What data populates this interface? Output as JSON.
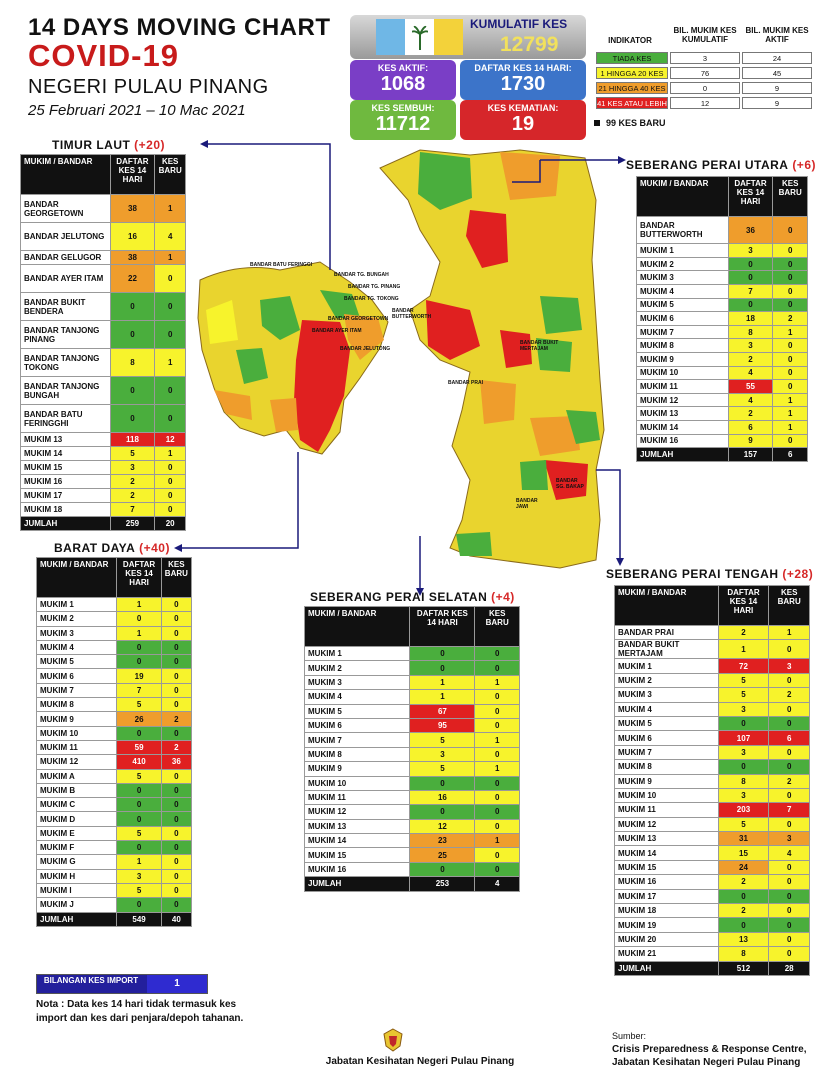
{
  "header": {
    "line1": "14  DAYS MOVING CHART",
    "line2": "COVID-19",
    "line3": "NEGERI PULAU PINANG",
    "line4": "25 Februari 2021 – 10 Mac 2021"
  },
  "stats": {
    "kumulatif": {
      "label": "KUMULATIF KES",
      "value": "12799"
    },
    "aktif": {
      "label": "KES AKTIF:",
      "value": "1068",
      "color": "#7a3ec6"
    },
    "daftar14": {
      "label": "DAFTAR KES 14 HARI:",
      "value": "1730",
      "color": "#3c74c9"
    },
    "sembuh": {
      "label": "KES SEMBUH:",
      "value": "11712",
      "color": "#6fb93f"
    },
    "kematian": {
      "label": "KES KEMATIAN:",
      "value": "19",
      "color": "#d6262a"
    }
  },
  "indicator": {
    "headers": [
      "INDIKATOR",
      "BIL. MUKIM KES KUMULATIF",
      "BIL. MUKIM KES AKTIF"
    ],
    "rows": [
      {
        "label": "TIADA KES",
        "cum": "3",
        "active": "24",
        "color": "#4aae3d"
      },
      {
        "label": "1 HINGGA 20 KES",
        "cum": "76",
        "active": "45",
        "color": "#f7f32c"
      },
      {
        "label": "21 HINGGA 40 KES",
        "cum": "0",
        "active": "9",
        "color": "#ef9d2c"
      },
      {
        "label": "41 KES ATAU LEBIH",
        "cum": "12",
        "active": "9",
        "color": "#e02020"
      }
    ],
    "new_cases_note": "99 KES BARU"
  },
  "table_headers": {
    "mukim": "MUKIM / BANDAR",
    "daftar": "DAFTAR KES 14 HARI",
    "baru": "KES BARU"
  },
  "timur_laut": {
    "title": "TIMUR LAUT",
    "delta": "(+20)",
    "rows": [
      [
        "BANDAR GEORGETOWN",
        "38",
        "1",
        "o",
        "o"
      ],
      [
        "BANDAR JELUTONG",
        "16",
        "4",
        "y",
        "y"
      ],
      [
        "BANDAR GELUGOR",
        "38",
        "1",
        "o",
        "o"
      ],
      [
        "BANDAR AYER ITAM",
        "22",
        "0",
        "o",
        "y"
      ],
      [
        "BANDAR BUKIT BENDERA",
        "0",
        "0",
        "g",
        "g"
      ],
      [
        "BANDAR TANJONG PINANG",
        "0",
        "0",
        "g",
        "g"
      ],
      [
        "BANDAR TANJONG TOKONG",
        "8",
        "1",
        "y",
        "y"
      ],
      [
        "BANDAR TANJONG BUNGAH",
        "0",
        "0",
        "g",
        "g"
      ],
      [
        "BANDAR BATU FERINGGHI",
        "0",
        "0",
        "g",
        "g"
      ],
      [
        "MUKIM 13",
        "118",
        "12",
        "r",
        "r"
      ],
      [
        "MUKIM 14",
        "5",
        "1",
        "y",
        "y"
      ],
      [
        "MUKIM 15",
        "3",
        "0",
        "y",
        "y"
      ],
      [
        "MUKIM 16",
        "2",
        "0",
        "y",
        "y"
      ],
      [
        "MUKIM 17",
        "2",
        "0",
        "y",
        "y"
      ],
      [
        "MUKIM 18",
        "7",
        "0",
        "y",
        "y"
      ]
    ],
    "total": [
      "JUMLAH",
      "259",
      "20"
    ]
  },
  "barat_daya": {
    "title": "BARAT DAYA",
    "delta": "(+40)",
    "rows": [
      [
        "MUKIM 1",
        "1",
        "0",
        "y",
        "y"
      ],
      [
        "MUKIM 2",
        "0",
        "0",
        "y",
        "y"
      ],
      [
        "MUKIM 3",
        "1",
        "0",
        "y",
        "y"
      ],
      [
        "MUKIM 4",
        "0",
        "0",
        "g",
        "g"
      ],
      [
        "MUKIM 5",
        "0",
        "0",
        "g",
        "g"
      ],
      [
        "MUKIM 6",
        "19",
        "0",
        "y",
        "y"
      ],
      [
        "MUKIM 7",
        "7",
        "0",
        "y",
        "y"
      ],
      [
        "MUKIM 8",
        "5",
        "0",
        "y",
        "y"
      ],
      [
        "MUKIM 9",
        "26",
        "2",
        "o",
        "o"
      ],
      [
        "MUKIM 10",
        "0",
        "0",
        "g",
        "g"
      ],
      [
        "MUKIM 11",
        "59",
        "2",
        "r",
        "r"
      ],
      [
        "MUKIM 12",
        "410",
        "36",
        "r",
        "r"
      ],
      [
        "MUKIM A",
        "5",
        "0",
        "y",
        "y"
      ],
      [
        "MUKIM B",
        "0",
        "0",
        "g",
        "g"
      ],
      [
        "MUKIM C",
        "0",
        "0",
        "g",
        "g"
      ],
      [
        "MUKIM D",
        "0",
        "0",
        "g",
        "g"
      ],
      [
        "MUKIM E",
        "5",
        "0",
        "y",
        "y"
      ],
      [
        "MUKIM F",
        "0",
        "0",
        "g",
        "g"
      ],
      [
        "MUKIM G",
        "1",
        "0",
        "y",
        "y"
      ],
      [
        "MUKIM H",
        "3",
        "0",
        "y",
        "y"
      ],
      [
        "MUKIM I",
        "5",
        "0",
        "y",
        "y"
      ],
      [
        "MUKIM J",
        "0",
        "0",
        "g",
        "g"
      ]
    ],
    "total": [
      "JUMLAH",
      "549",
      "40"
    ]
  },
  "spu": {
    "title": "SEBERANG PERAI UTARA",
    "delta": "(+6)",
    "rows": [
      [
        "BANDAR BUTTERWORTH",
        "36",
        "0",
        "o",
        "o"
      ],
      [
        "MUKIM 1",
        "3",
        "0",
        "y",
        "y"
      ],
      [
        "MUKIM 2",
        "0",
        "0",
        "g",
        "g"
      ],
      [
        "MUKIM 3",
        "0",
        "0",
        "g",
        "g"
      ],
      [
        "MUKIM 4",
        "7",
        "0",
        "y",
        "y"
      ],
      [
        "MUKIM 5",
        "0",
        "0",
        "g",
        "g"
      ],
      [
        "MUKIM 6",
        "18",
        "2",
        "y",
        "y"
      ],
      [
        "MUKIM 7",
        "8",
        "1",
        "y",
        "y"
      ],
      [
        "MUKIM 8",
        "3",
        "0",
        "y",
        "y"
      ],
      [
        "MUKIM 9",
        "2",
        "0",
        "y",
        "y"
      ],
      [
        "MUKIM 10",
        "4",
        "0",
        "y",
        "y"
      ],
      [
        "MUKIM 11",
        "55",
        "0",
        "r",
        "y"
      ],
      [
        "MUKIM 12",
        "4",
        "1",
        "y",
        "y"
      ],
      [
        "MUKIM 13",
        "2",
        "1",
        "y",
        "y"
      ],
      [
        "MUKIM 14",
        "6",
        "1",
        "y",
        "y"
      ],
      [
        "MUKIM 16",
        "9",
        "0",
        "y",
        "y"
      ]
    ],
    "total": [
      "JUMLAH",
      "157",
      "6"
    ]
  },
  "sps": {
    "title": "SEBERANG PERAI SELATAN",
    "delta": "(+4)",
    "rows": [
      [
        "MUKIM 1",
        "0",
        "0",
        "g",
        "g"
      ],
      [
        "MUKIM 2",
        "0",
        "0",
        "g",
        "g"
      ],
      [
        "MUKIM 3",
        "1",
        "1",
        "y",
        "y"
      ],
      [
        "MUKIM 4",
        "1",
        "0",
        "y",
        "y"
      ],
      [
        "MUKIM 5",
        "67",
        "0",
        "r",
        "y"
      ],
      [
        "MUKIM 6",
        "95",
        "0",
        "r",
        "y"
      ],
      [
        "MUKIM 7",
        "5",
        "1",
        "y",
        "y"
      ],
      [
        "MUKIM 8",
        "3",
        "0",
        "y",
        "y"
      ],
      [
        "MUKIM 9",
        "5",
        "1",
        "y",
        "y"
      ],
      [
        "MUKIM 10",
        "0",
        "0",
        "g",
        "g"
      ],
      [
        "MUKIM 11",
        "16",
        "0",
        "y",
        "y"
      ],
      [
        "MUKIM 12",
        "0",
        "0",
        "g",
        "g"
      ],
      [
        "MUKIM 13",
        "12",
        "0",
        "y",
        "y"
      ],
      [
        "MUKIM 14",
        "23",
        "1",
        "o",
        "o"
      ],
      [
        "MUKIM 15",
        "25",
        "0",
        "o",
        "y"
      ],
      [
        "MUKIM 16",
        "0",
        "0",
        "g",
        "g"
      ]
    ],
    "total": [
      "JUMLAH",
      "253",
      "4"
    ]
  },
  "spt": {
    "title": "SEBERANG PERAI TENGAH",
    "delta": "(+28)",
    "rows": [
      [
        "BANDAR PRAI",
        "2",
        "1",
        "y",
        "y"
      ],
      [
        "BANDAR BUKIT MERTAJAM",
        "1",
        "0",
        "y",
        "y"
      ],
      [
        "MUKIM 1",
        "72",
        "3",
        "r",
        "r"
      ],
      [
        "MUKIM 2",
        "5",
        "0",
        "y",
        "y"
      ],
      [
        "MUKIM 3",
        "5",
        "2",
        "y",
        "y"
      ],
      [
        "MUKIM 4",
        "3",
        "0",
        "y",
        "y"
      ],
      [
        "MUKIM 5",
        "0",
        "0",
        "g",
        "g"
      ],
      [
        "MUKIM 6",
        "107",
        "6",
        "r",
        "r"
      ],
      [
        "MUKIM 7",
        "3",
        "0",
        "y",
        "y"
      ],
      [
        "MUKIM 8",
        "0",
        "0",
        "g",
        "g"
      ],
      [
        "MUKIM 9",
        "8",
        "2",
        "y",
        "y"
      ],
      [
        "MUKIM 10",
        "3",
        "0",
        "y",
        "y"
      ],
      [
        "MUKIM 11",
        "203",
        "7",
        "r",
        "r"
      ],
      [
        "MUKIM 12",
        "5",
        "0",
        "y",
        "y"
      ],
      [
        "MUKIM 13",
        "31",
        "3",
        "o",
        "o"
      ],
      [
        "MUKIM 14",
        "15",
        "4",
        "y",
        "y"
      ],
      [
        "MUKIM 15",
        "24",
        "0",
        "o",
        "y"
      ],
      [
        "MUKIM 16",
        "2",
        "0",
        "y",
        "y"
      ],
      [
        "MUKIM 17",
        "0",
        "0",
        "g",
        "g"
      ],
      [
        "MUKIM 18",
        "2",
        "0",
        "y",
        "y"
      ],
      [
        "MUKIM 19",
        "0",
        "0",
        "g",
        "g"
      ],
      [
        "MUKIM 20",
        "13",
        "0",
        "y",
        "y"
      ],
      [
        "MUKIM 21",
        "8",
        "0",
        "y",
        "y"
      ]
    ],
    "total": [
      "JUMLAH",
      "512",
      "28"
    ]
  },
  "map_labels": {
    "island": [
      "BANDAR BATU FERINGGI",
      "BANDAR TG. BUNGAH",
      "BANDAR TG. PINANG",
      "BANDAR TG. TOKONG",
      "BANDAR GEORGETOWN",
      "BANDAR AYER ITAM",
      "BANDAR JELUTONG"
    ],
    "mainland": [
      "BANDAR BUTTERWORTH",
      "BANDAR PRAI",
      "BANDAR BUKIT MERTAJAM",
      "BANDAR SG. BAKAP",
      "BANDAR JAWI"
    ]
  },
  "import": {
    "label": "BILANGAN KES IMPORT",
    "value": "1"
  },
  "note": "Nota : Data kes 14 hari tidak termasuk kes import dan kes dari penjara/depoh tahanan.",
  "footer": {
    "center": "Jabatan Kesihatan Negeri Pulau Pinang",
    "source_label": "Sumber:",
    "source_line1": "Crisis Preparedness & Response Centre,",
    "source_line2": "Jabatan Kesihatan Negeri Pulau Pinang"
  }
}
